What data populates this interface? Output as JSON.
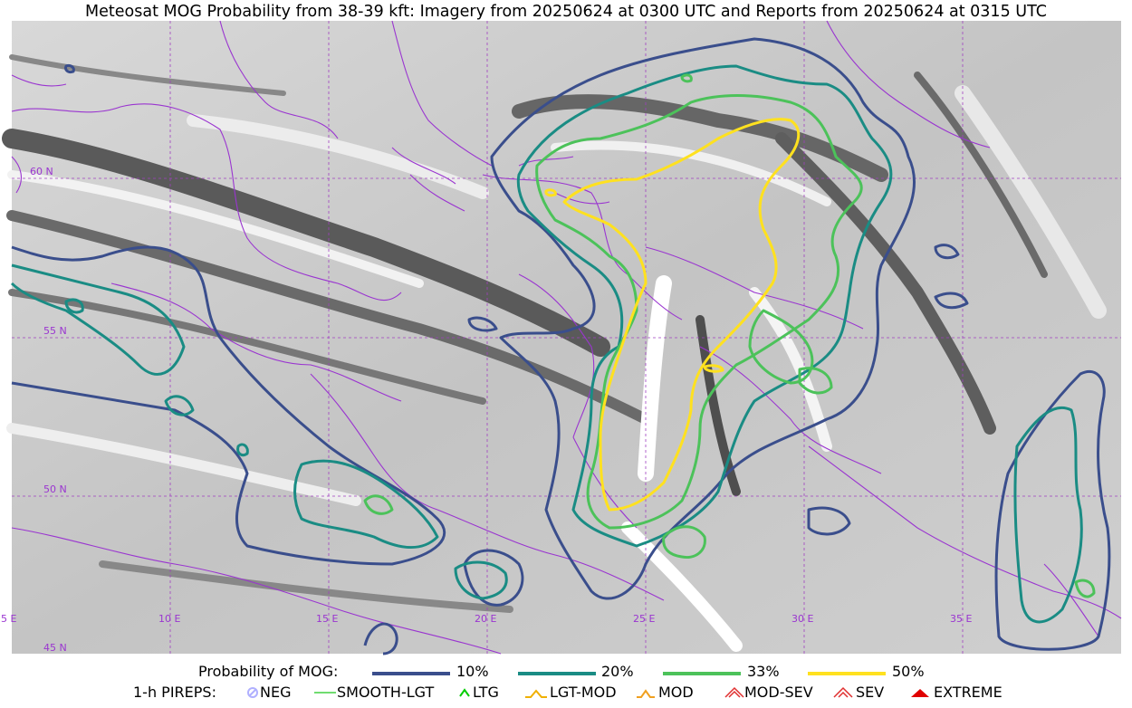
{
  "title": "Meteosat MOG Probability from 38-39 kft: Imagery from 20250624 at 0300 UTC and Reports from 20250624 at 0315 UTC",
  "map": {
    "lat_labels": [
      "60 N",
      "55 N",
      "50 N",
      "45 N"
    ],
    "lon_labels": [
      "5 E",
      "10 E",
      "15 E",
      "20 E",
      "25 E",
      "30 E",
      "35 E"
    ],
    "contour_colors": {
      "p10": "#3a4e8c",
      "p20": "#1a8c84",
      "p33": "#4cc25a",
      "p50": "#ffe11f"
    },
    "border_color": "#9a35d0",
    "grid_color": "#a040c0"
  },
  "legend": {
    "probability_label": "Probability of MOG:",
    "levels": [
      {
        "label": "10%",
        "color": "#3a4e8c"
      },
      {
        "label": "20%",
        "color": "#1a8c84"
      },
      {
        "label": "33%",
        "color": "#4cc25a"
      },
      {
        "label": "50%",
        "color": "#ffe11f"
      }
    ],
    "pireps_label": "1-h PIREPS:",
    "pireps": [
      {
        "label": "NEG",
        "icon": "neg-symbol-icon",
        "color": "#b0b0ff"
      },
      {
        "label": "SMOOTH-LGT",
        "icon": "smooth-lgt-line-icon",
        "color": "#40d040"
      },
      {
        "label": "LTG",
        "icon": "ltg-caret-icon",
        "color": "#00cc00"
      },
      {
        "label": "LGT-MOD",
        "icon": "lgt-mod-caret-icon",
        "color": "#f0b000"
      },
      {
        "label": "MOD",
        "icon": "mod-caret-icon",
        "color": "#f0a020"
      },
      {
        "label": "MOD-SEV",
        "icon": "mod-sev-caret-icon",
        "color": "#e03030"
      },
      {
        "label": "SEV",
        "icon": "sev-caret-icon",
        "color": "#e03030"
      },
      {
        "label": "EXTREME",
        "icon": "extreme-caret-icon",
        "color": "#e00000"
      }
    ]
  }
}
